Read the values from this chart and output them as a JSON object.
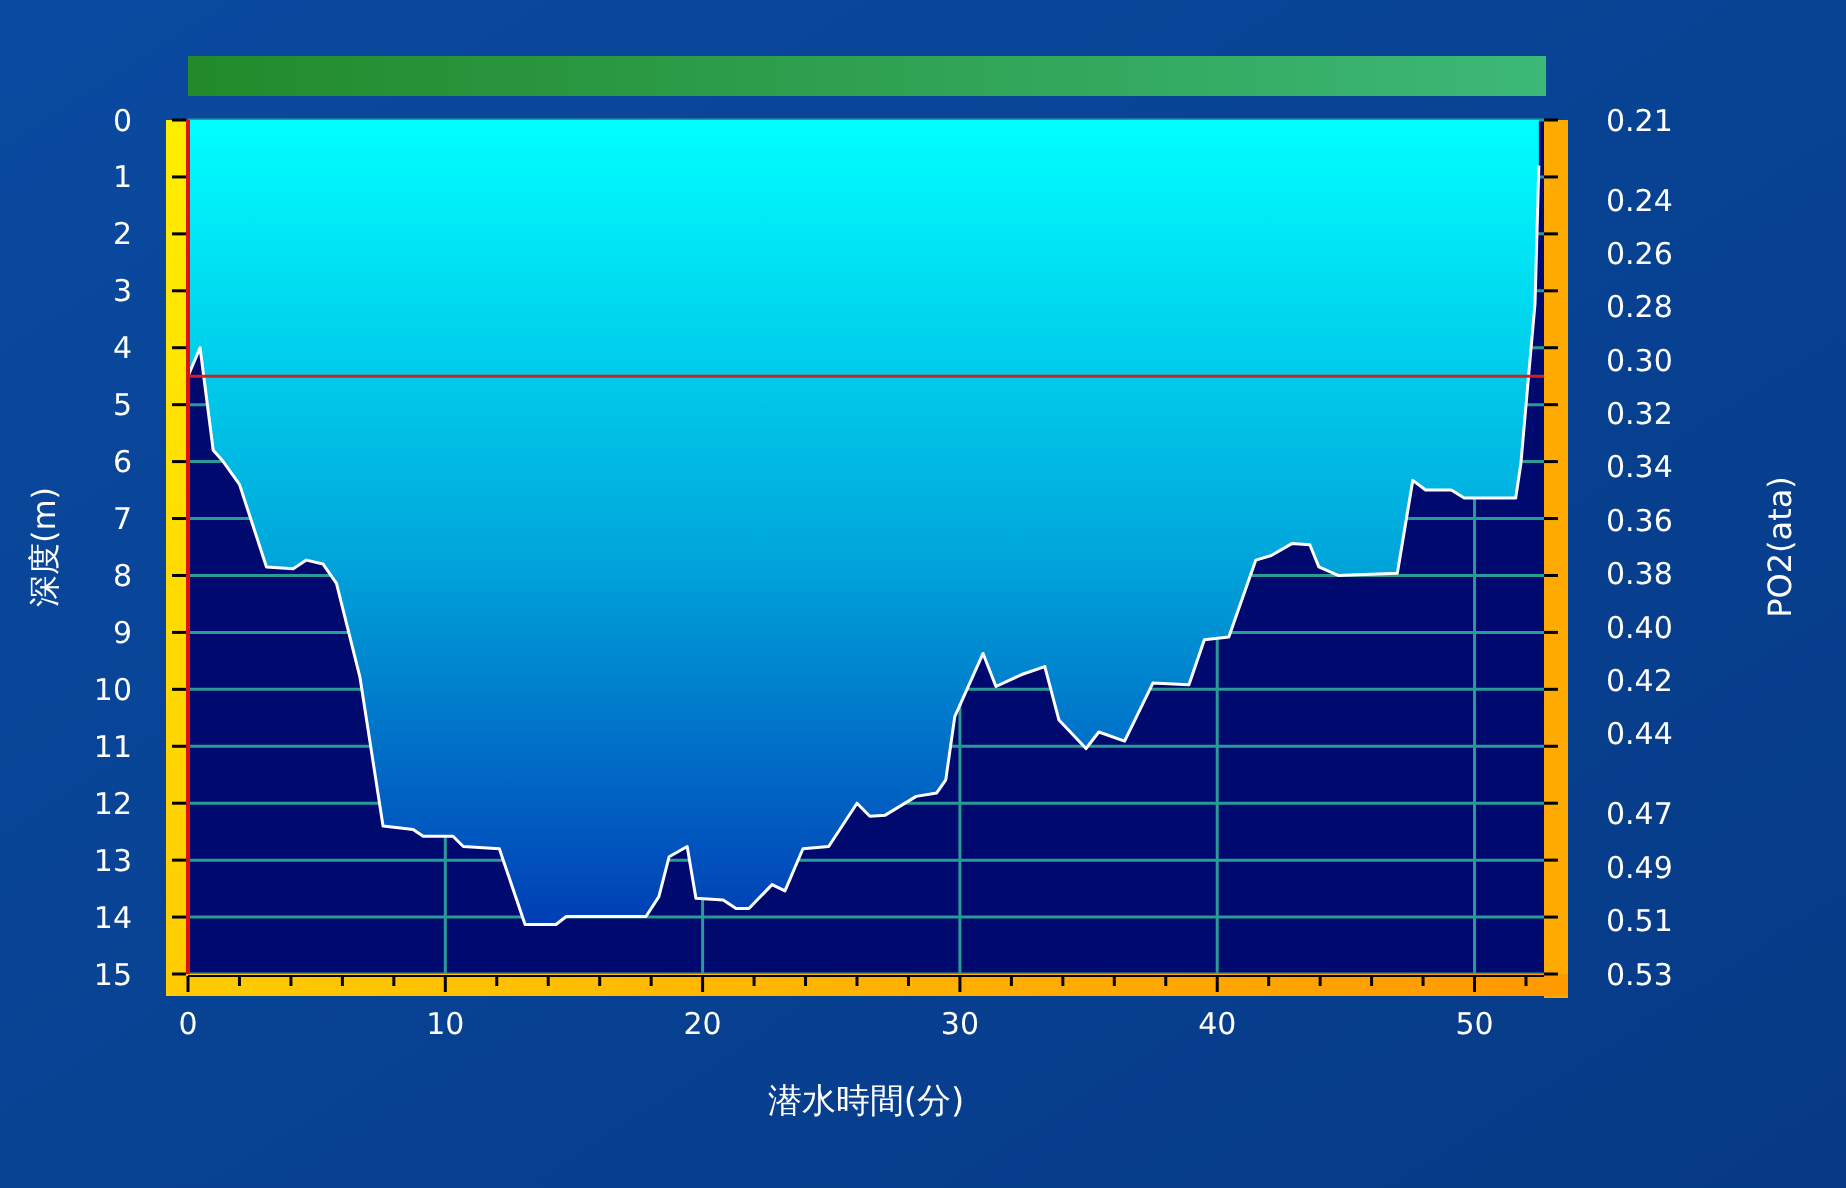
{
  "chart_data": {
    "type": "area",
    "xlabel": "潜水時間(分)",
    "ylabel": "深度(m)",
    "y2label": "PO2(ata)",
    "x": [
      0,
      0.47,
      0.98,
      1.37,
      2.0,
      3.05,
      4.09,
      4.6,
      5.25,
      5.77,
      6.68,
      7.58,
      8.75,
      9.14,
      10.3,
      10.7,
      12.1,
      13.1,
      14.3,
      14.7,
      17.8,
      18.3,
      18.7,
      19.4,
      19.74,
      20.8,
      21.3,
      21.8,
      22.7,
      23.2,
      23.9,
      24.9,
      26.0,
      26.5,
      27.1,
      28.3,
      29.1,
      29.45,
      29.8,
      30.9,
      31.4,
      32.4,
      33.3,
      33.85,
      34.9,
      35.4,
      36.4,
      37.5,
      38.9,
      39.5,
      40.45,
      41.5,
      42.1,
      42.9,
      43.6,
      43.95,
      44.7,
      47.0,
      47.6,
      48.1,
      49.1,
      49.6,
      51.6,
      51.8,
      52.1,
      52.35,
      52.5
    ],
    "series": [
      {
        "color": "#00a8dc",
        "values": [
          4.5,
          4.0,
          5.8,
          6.0,
          6.4,
          7.85,
          7.88,
          7.73,
          7.8,
          8.14,
          9.78,
          12.4,
          12.46,
          12.58,
          12.58,
          12.76,
          12.8,
          14.13,
          14.13,
          13.99,
          13.99,
          13.64,
          12.94,
          12.76,
          13.67,
          13.7,
          13.85,
          13.85,
          13.43,
          13.54,
          12.8,
          12.76,
          12.0,
          12.23,
          12.21,
          11.88,
          11.82,
          11.59,
          10.48,
          9.37,
          9.95,
          9.74,
          9.6,
          10.54,
          11.04,
          10.75,
          10.91,
          9.89,
          9.92,
          9.13,
          9.08,
          7.73,
          7.65,
          7.44,
          7.46,
          7.85,
          8.0,
          7.96,
          6.33,
          6.5,
          6.5,
          6.64,
          6.64,
          6.04,
          4.5,
          3.23,
          0.8
        ]
      }
    ],
    "xlim": [
      0,
      52.7
    ],
    "xticks": [
      0,
      {
        "value": 2,
        "label": null
      },
      {
        "value": 4,
        "label": null
      },
      {
        "value": 6,
        "label": null
      },
      {
        "value": 8,
        "label": null
      },
      10,
      {
        "value": 12,
        "label": null
      },
      {
        "value": 14,
        "label": null
      },
      {
        "value": 16,
        "label": null
      },
      {
        "value": 18,
        "label": null
      },
      20,
      {
        "value": 22,
        "label": null
      },
      {
        "value": 24,
        "label": null
      },
      {
        "value": 26,
        "label": null
      },
      {
        "value": 28,
        "label": null
      },
      30,
      {
        "value": 32,
        "label": null
      },
      {
        "value": 34,
        "label": null
      },
      {
        "value": 36,
        "label": null
      },
      {
        "value": 38,
        "label": null
      },
      40,
      {
        "value": 42,
        "label": null
      },
      {
        "value": 44,
        "label": null
      },
      {
        "value": 46,
        "label": null
      },
      {
        "value": 48,
        "label": null
      },
      50,
      {
        "value": 52,
        "label": null
      }
    ],
    "ylim": [
      15,
      0
    ],
    "yticks": [
      0,
      1,
      2,
      3,
      4,
      5,
      6,
      7,
      8,
      9,
      10,
      11,
      12,
      13,
      14,
      15
    ],
    "y2lim": [
      0.53,
      0.21
    ],
    "y2ticks": [
      0.21,
      0.24,
      0.26,
      0.28,
      {
        "value": 0.3,
        "label": "0.30"
      },
      0.32,
      0.34,
      0.36,
      0.38,
      {
        "value": 0.4,
        "label": "0.40"
      },
      0.42,
      0.44,
      0.47,
      0.49,
      0.51,
      0.53
    ],
    "grid": true,
    "ref_lines": [
      {
        "axis": "y",
        "value": 4.5,
        "color": "#d02020"
      }
    ]
  }
}
